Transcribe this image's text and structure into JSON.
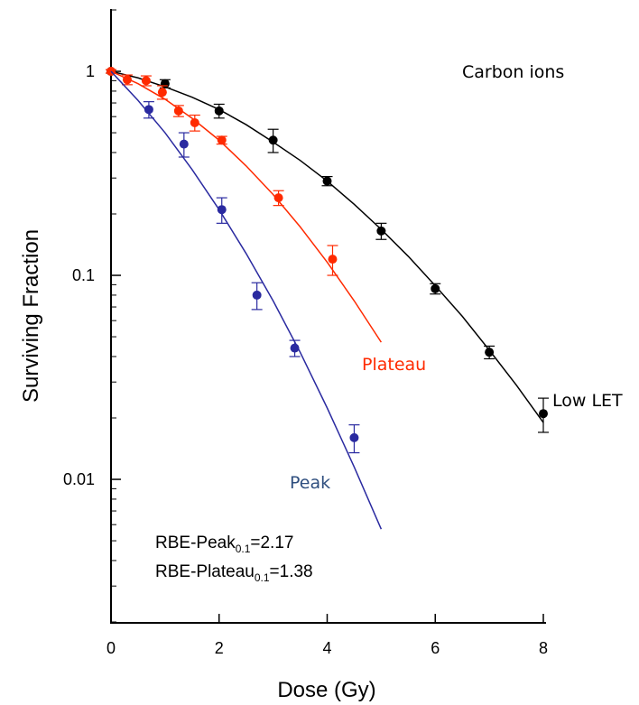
{
  "chart_data": {
    "type": "scatter",
    "title": "Carbon ions",
    "x_label": "Dose (Gy)",
    "y_label": "Surviving Fraction",
    "xlim": [
      0,
      8
    ],
    "xticks": [
      0,
      2,
      4,
      6,
      8
    ],
    "ylim": [
      0.002,
      2
    ],
    "yticks": [
      1,
      0.1,
      0.01
    ],
    "y_scale": "log",
    "grid": false,
    "series": [
      {
        "name": "Low LET",
        "color": "#000000",
        "label_color": "#000000",
        "x": [
          0,
          1,
          2,
          3,
          4,
          5,
          6,
          7,
          8
        ],
        "values": [
          1,
          0.87,
          0.64,
          0.46,
          0.29,
          0.165,
          0.086,
          0.042,
          0.021
        ],
        "errors": [
          0.02,
          0.04,
          0.05,
          0.06,
          0.015,
          0.015,
          0.005,
          0.003,
          0.004
        ],
        "fit": {
          "x": [
            0,
            0.5,
            1,
            1.5,
            2,
            2.5,
            3,
            3.5,
            4,
            4.5,
            5,
            5.5,
            6,
            6.5,
            7,
            7.5,
            8
          ],
          "y": [
            1,
            0.929,
            0.84,
            0.747,
            0.65,
            0.548,
            0.45,
            0.366,
            0.29,
            0.223,
            0.168,
            0.124,
            0.089,
            0.063,
            0.043,
            0.029,
            0.019
          ]
        }
      },
      {
        "name": "Plateau",
        "color": "#ff2a00",
        "label_color": "#ff2a00",
        "x": [
          0,
          0.3,
          0.65,
          0.95,
          1.25,
          1.55,
          2.05,
          3.1,
          4.1
        ],
        "values": [
          1,
          0.91,
          0.9,
          0.79,
          0.64,
          0.56,
          0.46,
          0.24,
          0.12
        ],
        "errors": [
          0.02,
          0.05,
          0.05,
          0.06,
          0.04,
          0.05,
          0.02,
          0.02,
          0.02
        ],
        "fit": {
          "x": [
            0,
            0.5,
            1,
            1.5,
            2,
            2.5,
            3,
            3.5,
            4,
            4.5,
            5
          ],
          "y": [
            1,
            0.87,
            0.73,
            0.589,
            0.46,
            0.344,
            0.249,
            0.173,
            0.116,
            0.075,
            0.047
          ]
        }
      },
      {
        "name": "Peak",
        "color": "#2a2aa0",
        "label_color": "#2f4f7f",
        "x": [
          0.7,
          1.35,
          2.05,
          2.7,
          3.4,
          4.5
        ],
        "values": [
          0.65,
          0.44,
          0.21,
          0.08,
          0.044,
          0.016
        ],
        "errors": [
          0.06,
          0.06,
          0.03,
          0.012,
          0.004,
          0.0025
        ],
        "fit": {
          "x": [
            0,
            0.5,
            1,
            1.5,
            2,
            2.5,
            3,
            3.5,
            4,
            4.5,
            5
          ],
          "y": [
            1,
            0.72,
            0.5,
            0.33,
            0.21,
            0.128,
            0.075,
            0.042,
            0.0224,
            0.0115,
            0.0057
          ]
        }
      }
    ],
    "annotations": [
      {
        "text": "RBE-Peak",
        "sub": "0.1",
        "value": "=2.17"
      },
      {
        "text": "RBE-Plateau",
        "sub": "0.1",
        "value": "=1.38"
      }
    ]
  }
}
